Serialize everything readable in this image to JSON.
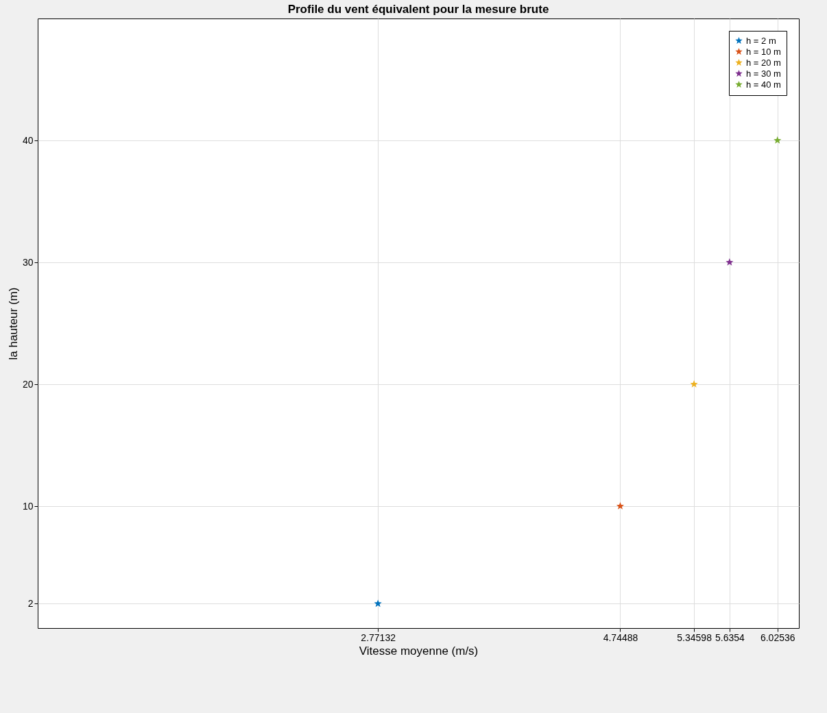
{
  "chart_data": {
    "type": "scatter",
    "title": "Profile du vent équivalent pour la mesure brute",
    "xlabel": "Vitesse moyenne (m/s)",
    "ylabel": "la hauteur (m)",
    "series": [
      {
        "name": "h = 2 m",
        "color": "#0072bd",
        "x": [
          2.77132
        ],
        "values": [
          2
        ]
      },
      {
        "name": "h = 10 m",
        "color": "#d95319",
        "x": [
          4.74488
        ],
        "values": [
          10
        ]
      },
      {
        "name": "h = 20 m",
        "color": "#edb120",
        "x": [
          5.34598
        ],
        "values": [
          20
        ]
      },
      {
        "name": "h = 30 m",
        "color": "#7e2f8e",
        "x": [
          5.6354
        ],
        "values": [
          30
        ]
      },
      {
        "name": "h = 40 m",
        "color": "#77ac30",
        "x": [
          6.02536
        ],
        "values": [
          40
        ]
      }
    ],
    "xlim": [
      0,
      6.2
    ],
    "xticks": [
      2.77132,
      4.74488,
      5.34598,
      5.6354,
      6.02536
    ],
    "ylim": [
      0,
      50
    ],
    "yticks": [
      2,
      10,
      20,
      30,
      40
    ],
    "grid": true,
    "legend": "top right",
    "marker": "star"
  }
}
